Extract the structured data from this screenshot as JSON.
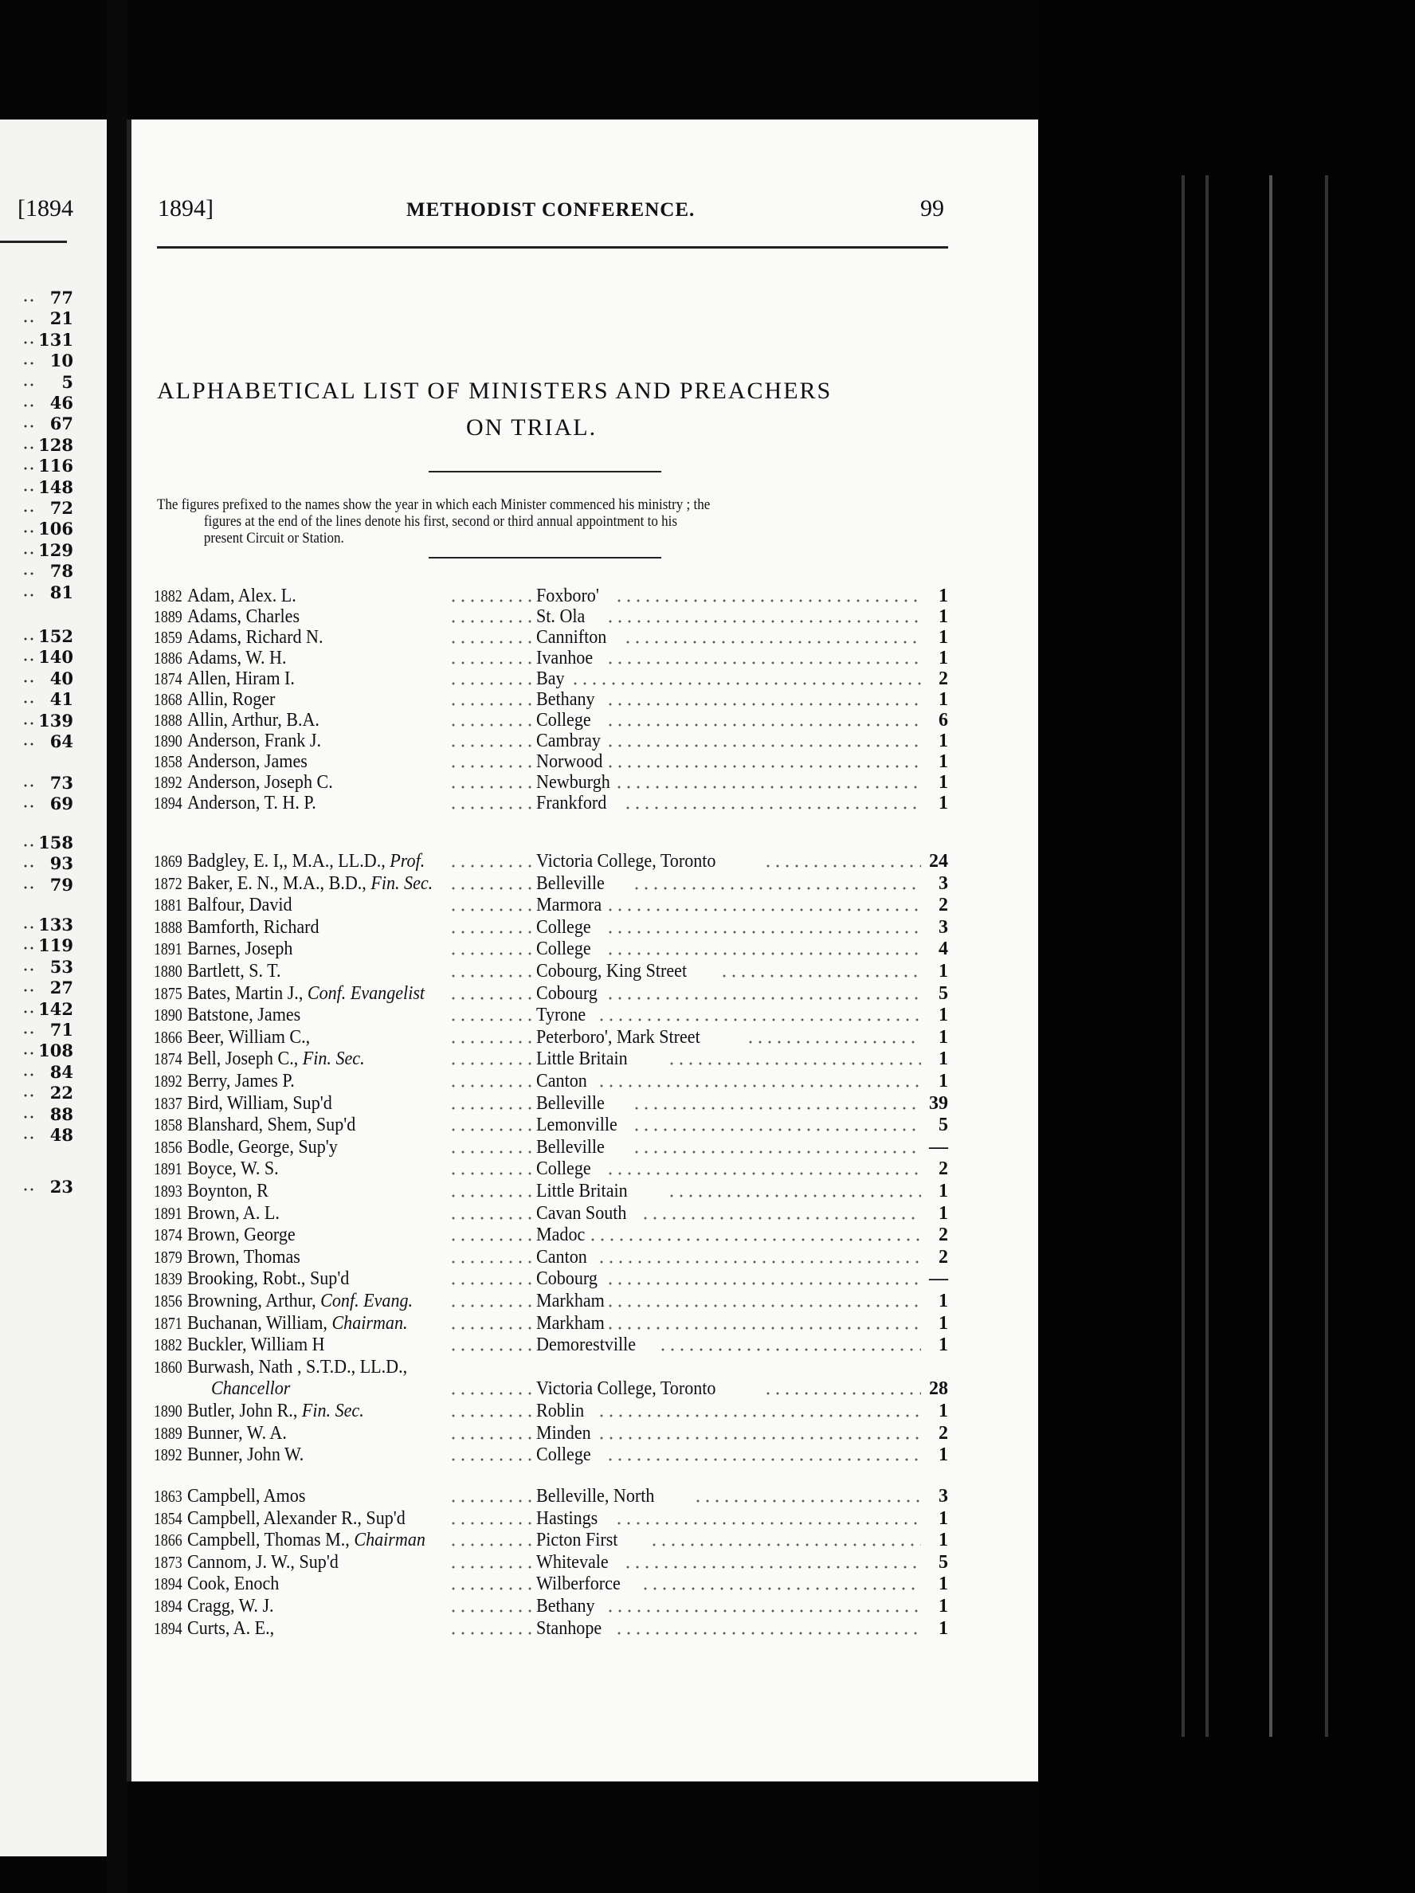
{
  "left_page": {
    "header": "[1894",
    "number_groups": [
      [
        "77",
        "21",
        "131",
        "10",
        "5",
        "46",
        "67",
        "128",
        "116",
        "148",
        "72",
        "106",
        "129",
        "78",
        "81"
      ],
      [
        "152",
        "140",
        "40",
        "41",
        "139",
        "64"
      ],
      [
        "73",
        "69"
      ],
      [
        "158",
        "93",
        "79"
      ],
      [
        "133",
        "119",
        "53",
        "27",
        "142",
        "71",
        "108",
        "84",
        "22",
        "88",
        "48"
      ],
      [
        "23"
      ]
    ]
  },
  "page": {
    "header_year": "1894]",
    "header_title": "METHODIST CONFERENCE.",
    "page_number": "99",
    "title_line1": "ALPHABETICAL LIST OF MINISTERS AND PREACHERS",
    "title_line2": "ON TRIAL.",
    "note_line1": "The figures prefixed to the names show the year in which each Minister commenced his ministry ; the",
    "note_line2": "figures at the end of the lines denote his first, second or third annual appointment to his",
    "note_line3": "present Circuit or Station.",
    "groups": [
      {
        "entries": [
          {
            "year": "1882",
            "name": "Adam, Alex. L.",
            "role": "",
            "place": "Foxboro'",
            "appt": "1"
          },
          {
            "year": "1889",
            "name": "Adams, Charles",
            "role": "",
            "place": "St. Ola",
            "appt": "1"
          },
          {
            "year": "1859",
            "name": "Adams, Richard N.",
            "role": "",
            "place": "Cannifton",
            "appt": "1"
          },
          {
            "year": "1886",
            "name": "Adams, W. H.",
            "role": "",
            "place": "Ivanhoe",
            "appt": "1"
          },
          {
            "year": "1874",
            "name": "Allen, Hiram I.",
            "role": "",
            "place": "Bay",
            "appt": "2"
          },
          {
            "year": "1868",
            "name": "Allin, Roger",
            "role": "",
            "place": "Bethany",
            "appt": "1"
          },
          {
            "year": "1888",
            "name": "Allin, Arthur, B.A.",
            "role": "",
            "place": "College",
            "appt": "6"
          },
          {
            "year": "1890",
            "name": "Anderson, Frank J.",
            "role": "",
            "place": "Cambray",
            "appt": "1"
          },
          {
            "year": "1858",
            "name": "Anderson, James",
            "role": "",
            "place": "Norwood",
            "appt": "1"
          },
          {
            "year": "1892",
            "name": "Anderson, Joseph C.",
            "role": "",
            "place": "Newburgh",
            "appt": "1"
          },
          {
            "year": "1894",
            "name": "Anderson, T. H. P.",
            "role": "",
            "place": "Frankford",
            "appt": "1"
          }
        ]
      },
      {
        "entries": [
          {
            "year": "1869",
            "name": "Badgley, E. I,, M.A., LL.D.,",
            "role": "Prof.",
            "place": "Victoria College, Toronto",
            "appt": "24"
          },
          {
            "year": "1872",
            "name": "Baker, E. N., M.A., B.D.,",
            "role": "Fin. Sec.",
            "place": "Belleville",
            "appt": "3"
          },
          {
            "year": "1881",
            "name": "Balfour, David",
            "role": "",
            "place": "Marmora",
            "appt": "2"
          },
          {
            "year": "1888",
            "name": "Bamforth, Richard",
            "role": "",
            "place": "College",
            "appt": "3"
          },
          {
            "year": "1891",
            "name": "Barnes, Joseph",
            "role": "",
            "place": "College",
            "appt": "4"
          },
          {
            "year": "1880",
            "name": "Bartlett, S. T.",
            "role": "",
            "place": "Cobourg, King Street",
            "appt": "1"
          },
          {
            "year": "1875",
            "name": "Bates, Martin J.,",
            "role": "Conf. Evangelist",
            "place": "Cobourg",
            "appt": "5"
          },
          {
            "year": "1890",
            "name": "Batstone, James",
            "role": "",
            "place": "Tyrone",
            "appt": "1"
          },
          {
            "year": "1866",
            "name": "Beer, William C.,",
            "role": "",
            "place": "Peterboro', Mark Street",
            "appt": "1"
          },
          {
            "year": "1874",
            "name": "Bell, Joseph C.,",
            "role": "Fin. Sec.",
            "place": "Little Britain",
            "appt": "1"
          },
          {
            "year": "1892",
            "name": "Berry, James P.",
            "role": "",
            "place": "Canton",
            "appt": "1"
          },
          {
            "year": "1837",
            "name": "Bird, William, Sup'd",
            "role": "",
            "place": "Belleville",
            "appt": "39"
          },
          {
            "year": "1858",
            "name": "Blanshard, Shem, Sup'd",
            "role": "",
            "place": "Lemonville",
            "appt": "5"
          },
          {
            "year": "1856",
            "name": "Bodle, George, Sup'y",
            "role": "",
            "place": "Belleville",
            "appt": "—"
          },
          {
            "year": "1891",
            "name": "Boyce, W. S.",
            "role": "",
            "place": "College",
            "appt": "2"
          },
          {
            "year": "1893",
            "name": "Boynton, R",
            "role": "",
            "place": "Little Britain",
            "appt": "1"
          },
          {
            "year": "1891",
            "name": "Brown, A. L.",
            "role": "",
            "place": "Cavan South",
            "appt": "1"
          },
          {
            "year": "1874",
            "name": "Brown, George",
            "role": "",
            "place": "Madoc",
            "appt": "2"
          },
          {
            "year": "1879",
            "name": "Brown, Thomas",
            "role": "",
            "place": "Canton",
            "appt": "2"
          },
          {
            "year": "1839",
            "name": "Brooking, Robt., Sup'd",
            "role": "",
            "place": "Cobourg",
            "appt": "—"
          },
          {
            "year": "1856",
            "name": "Browning, Arthur,",
            "role": "Conf. Evang.",
            "place": "Markham",
            "appt": "1"
          },
          {
            "year": "1871",
            "name": "Buchanan, William,",
            "role": "Chairman.",
            "place": "Markham",
            "appt": "1"
          },
          {
            "year": "1882",
            "name": "Buckler, William H",
            "role": "",
            "place": "Demorestville",
            "appt": "1"
          },
          {
            "year": "1860",
            "name": "Burwash, Nath , S.T.D., LL.D.,",
            "role": "",
            "place": "",
            "appt": ""
          },
          {
            "year": "",
            "name": "",
            "role": "Chancellor",
            "place": "Victoria College, Toronto",
            "appt": "28"
          },
          {
            "year": "1890",
            "name": "Butler, John R.,",
            "role": "Fin. Sec.",
            "place": "Roblin",
            "appt": "1"
          },
          {
            "year": "1889",
            "name": "Bunner, W. A.",
            "role": "",
            "place": "Minden",
            "appt": "2"
          },
          {
            "year": "1892",
            "name": "Bunner, John W.",
            "role": "",
            "place": "College",
            "appt": "1"
          }
        ]
      },
      {
        "entries": [
          {
            "year": "1863",
            "name": "Campbell, Amos",
            "role": "",
            "place": "Belleville, North",
            "appt": "3"
          },
          {
            "year": "1854",
            "name": "Campbell, Alexander R., Sup'd",
            "role": "",
            "place": "Hastings",
            "appt": "1"
          },
          {
            "year": "1866",
            "name": "Campbell, Thomas M.,",
            "role": "Chairman",
            "place": "Picton First",
            "appt": "1"
          },
          {
            "year": "1873",
            "name": "Cannom, J. W., Sup'd",
            "role": "",
            "place": "Whitevale",
            "appt": "5"
          },
          {
            "year": "1894",
            "name": "Cook, Enoch",
            "role": "",
            "place": "Wilberforce",
            "appt": "1"
          },
          {
            "year": "1894",
            "name": "Cragg, W. J.",
            "role": "",
            "place": "Bethany",
            "appt": "1"
          },
          {
            "year": "1894",
            "name": "Curts, A. E.,",
            "role": "",
            "place": "Stanhope",
            "appt": "1"
          }
        ]
      }
    ]
  }
}
